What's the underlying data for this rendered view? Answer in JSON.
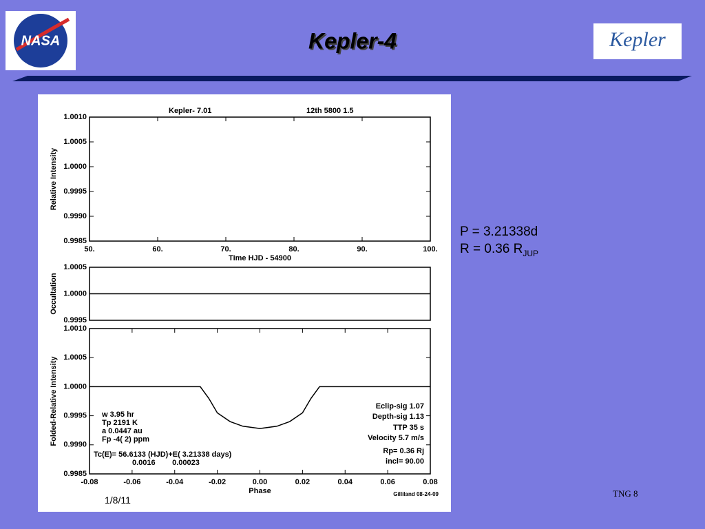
{
  "title": "Kepler-4",
  "logos": {
    "left": "NASA",
    "right": "Kepler"
  },
  "info": {
    "period": "P = 3.21338d",
    "radius": "R = 0.36 R",
    "radius_sub": "JUP"
  },
  "footer": {
    "date": "1/8/11",
    "page": "TNG 8"
  },
  "figure": {
    "header_left": "Kepler-   7.01",
    "header_right": "12th   5800   1.5",
    "left_notes": [
      "w  3.95 hr",
      "Tp 2191 K",
      "a 0.0447 au",
      "Fp  -4(  2) ppm"
    ],
    "ephemeris": [
      "Tc(E)= 56.6133 (HJD)+E( 3.21338 days)",
      "0.0016        0.00023"
    ],
    "right_notes": [
      "Eclip-sig   1.07",
      "Depth-sig   1.13",
      "TTP  35 s",
      "Velocity   5.7 m/s",
      "Rp=  0.36 Rj",
      "incl= 90.00"
    ],
    "credit": "Gilliland 08-24-09"
  },
  "chart_data": [
    {
      "type": "scatter",
      "ylabel": "Relative Intensity",
      "xlabel": "Time HJD - 54900",
      "xlim": [
        50,
        100
      ],
      "xticks": [
        {
          "value": 50,
          "label": "50."
        },
        {
          "value": 60,
          "label": "60."
        },
        {
          "value": 70,
          "label": "70."
        },
        {
          "value": 80,
          "label": "80."
        },
        {
          "value": 90,
          "label": "90."
        },
        {
          "value": 100,
          "label": "100."
        }
      ],
      "ylim": [
        0.9985,
        1.001
      ],
      "yticks": [
        {
          "value": 0.9985,
          "label": "0.9985"
        },
        {
          "value": 0.999,
          "label": "0.9990"
        },
        {
          "value": 0.9995,
          "label": "0.9995"
        },
        {
          "value": 1,
          "label": "1.0000"
        },
        {
          "value": 1.0005,
          "label": "1.0005"
        },
        {
          "value": 1.001,
          "label": "1.0010"
        }
      ]
    },
    {
      "type": "line",
      "ylabel": "Occultation",
      "xlim": [
        -0.08,
        0.08
      ],
      "ylim": [
        0.9995,
        1.0005
      ],
      "yticks": [
        {
          "value": 0.9995,
          "label": "0.9995"
        },
        {
          "value": 1,
          "label": "1.0000"
        },
        {
          "value": 1.0005,
          "label": "1.0005"
        }
      ],
      "x": [
        -0.08,
        0.08
      ],
      "values": [
        1,
        1
      ],
      "color": "#000000"
    },
    {
      "type": "line",
      "ylabel": "Folded-Relative Intensity",
      "xlabel": "Phase",
      "xlim": [
        -0.08,
        0.08
      ],
      "xticks": [
        -0.08,
        -0.06,
        -0.04,
        -0.02,
        {
          "value": 0,
          "label": "0.00"
        },
        0.02,
        0.04,
        0.06,
        0.08
      ],
      "ylim": [
        0.9985,
        1.001
      ],
      "yticks": [
        {
          "value": 0.9985,
          "label": "0.9985"
        },
        {
          "value": 0.999,
          "label": "0.9990"
        },
        {
          "value": 0.9995,
          "label": "0.9995"
        },
        {
          "value": 1,
          "label": "1.0000"
        },
        {
          "value": 1.0005,
          "label": "1.0005"
        },
        {
          "value": 1.001,
          "label": "1.0010"
        }
      ],
      "x": [
        -0.08,
        -0.028,
        -0.024,
        -0.02,
        -0.014,
        -0.008,
        0,
        0.008,
        0.014,
        0.02,
        0.024,
        0.028,
        0.08
      ],
      "values": [
        1,
        1,
        0.9998,
        0.99955,
        0.9994,
        0.99932,
        0.99928,
        0.99932,
        0.9994,
        0.99955,
        0.9998,
        1,
        1
      ],
      "color": "#000000"
    }
  ]
}
